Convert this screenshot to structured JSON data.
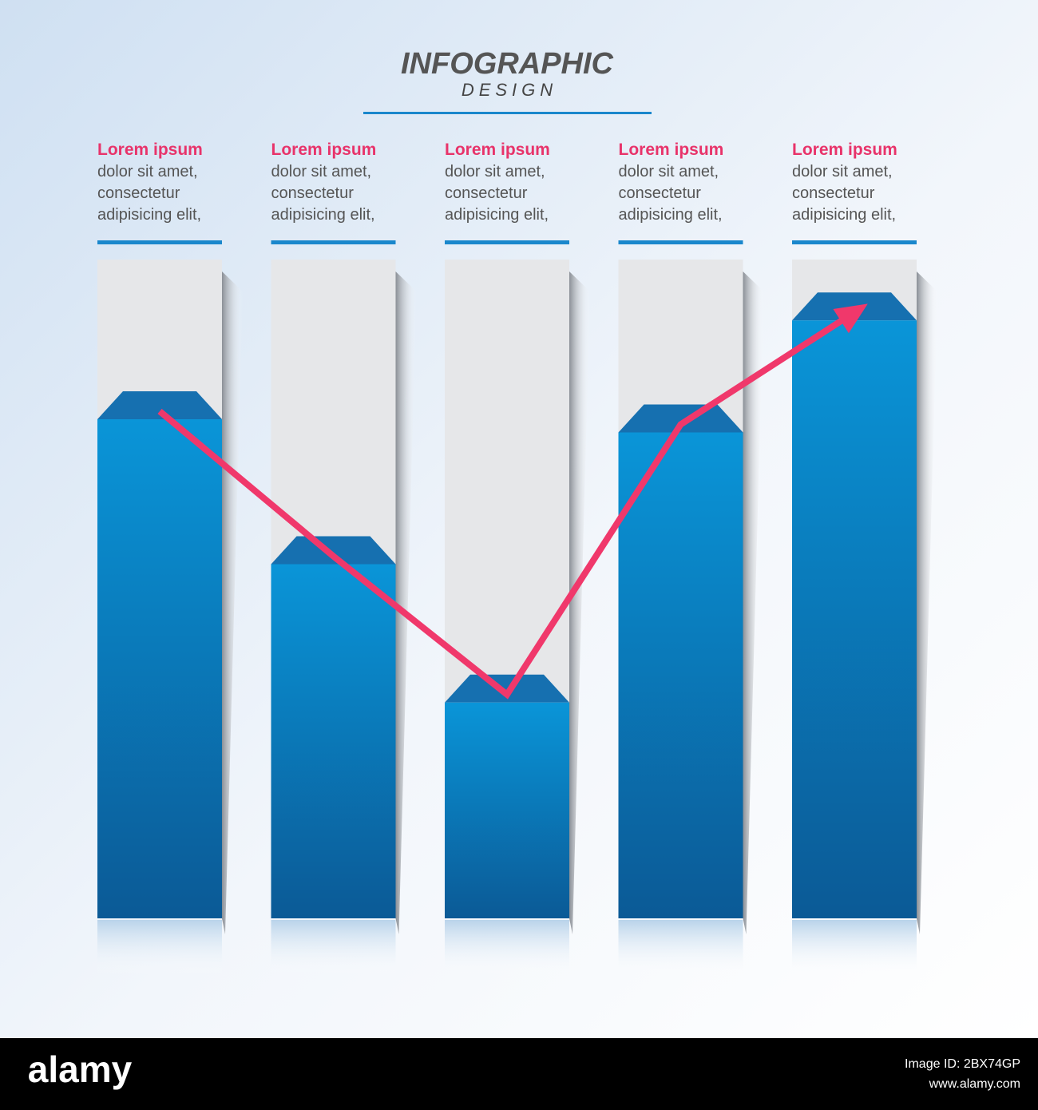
{
  "chart_data": {
    "type": "bar",
    "title": "INFOGRAPHIC",
    "subtitle": "DESIGN",
    "categories": [
      "Lorem ipsum",
      "Lorem ipsum",
      "Lorem ipsum",
      "Lorem ipsum",
      "Lorem ipsum"
    ],
    "descriptions": [
      [
        "dolor sit amet,",
        "consectetur",
        "adipisicing elit,"
      ],
      [
        "dolor sit amet,",
        "consectetur",
        "adipisicing elit,"
      ],
      [
        "dolor sit amet,",
        "consectetur",
        "adipisicing elit,"
      ],
      [
        "dolor sit amet,",
        "consectetur",
        "adipisicing elit,"
      ],
      [
        "dolor sit amet,",
        "consectetur",
        "adipisicing elit,"
      ]
    ],
    "values": [
      80,
      58,
      37,
      78,
      95
    ],
    "ylim": [
      0,
      100
    ],
    "color": "#0a7cc4",
    "trend_color": "#f0386b"
  },
  "footer": {
    "logo": "alamy",
    "image_id": "Image ID: 2BX74GP",
    "url": "www.alamy.com"
  }
}
